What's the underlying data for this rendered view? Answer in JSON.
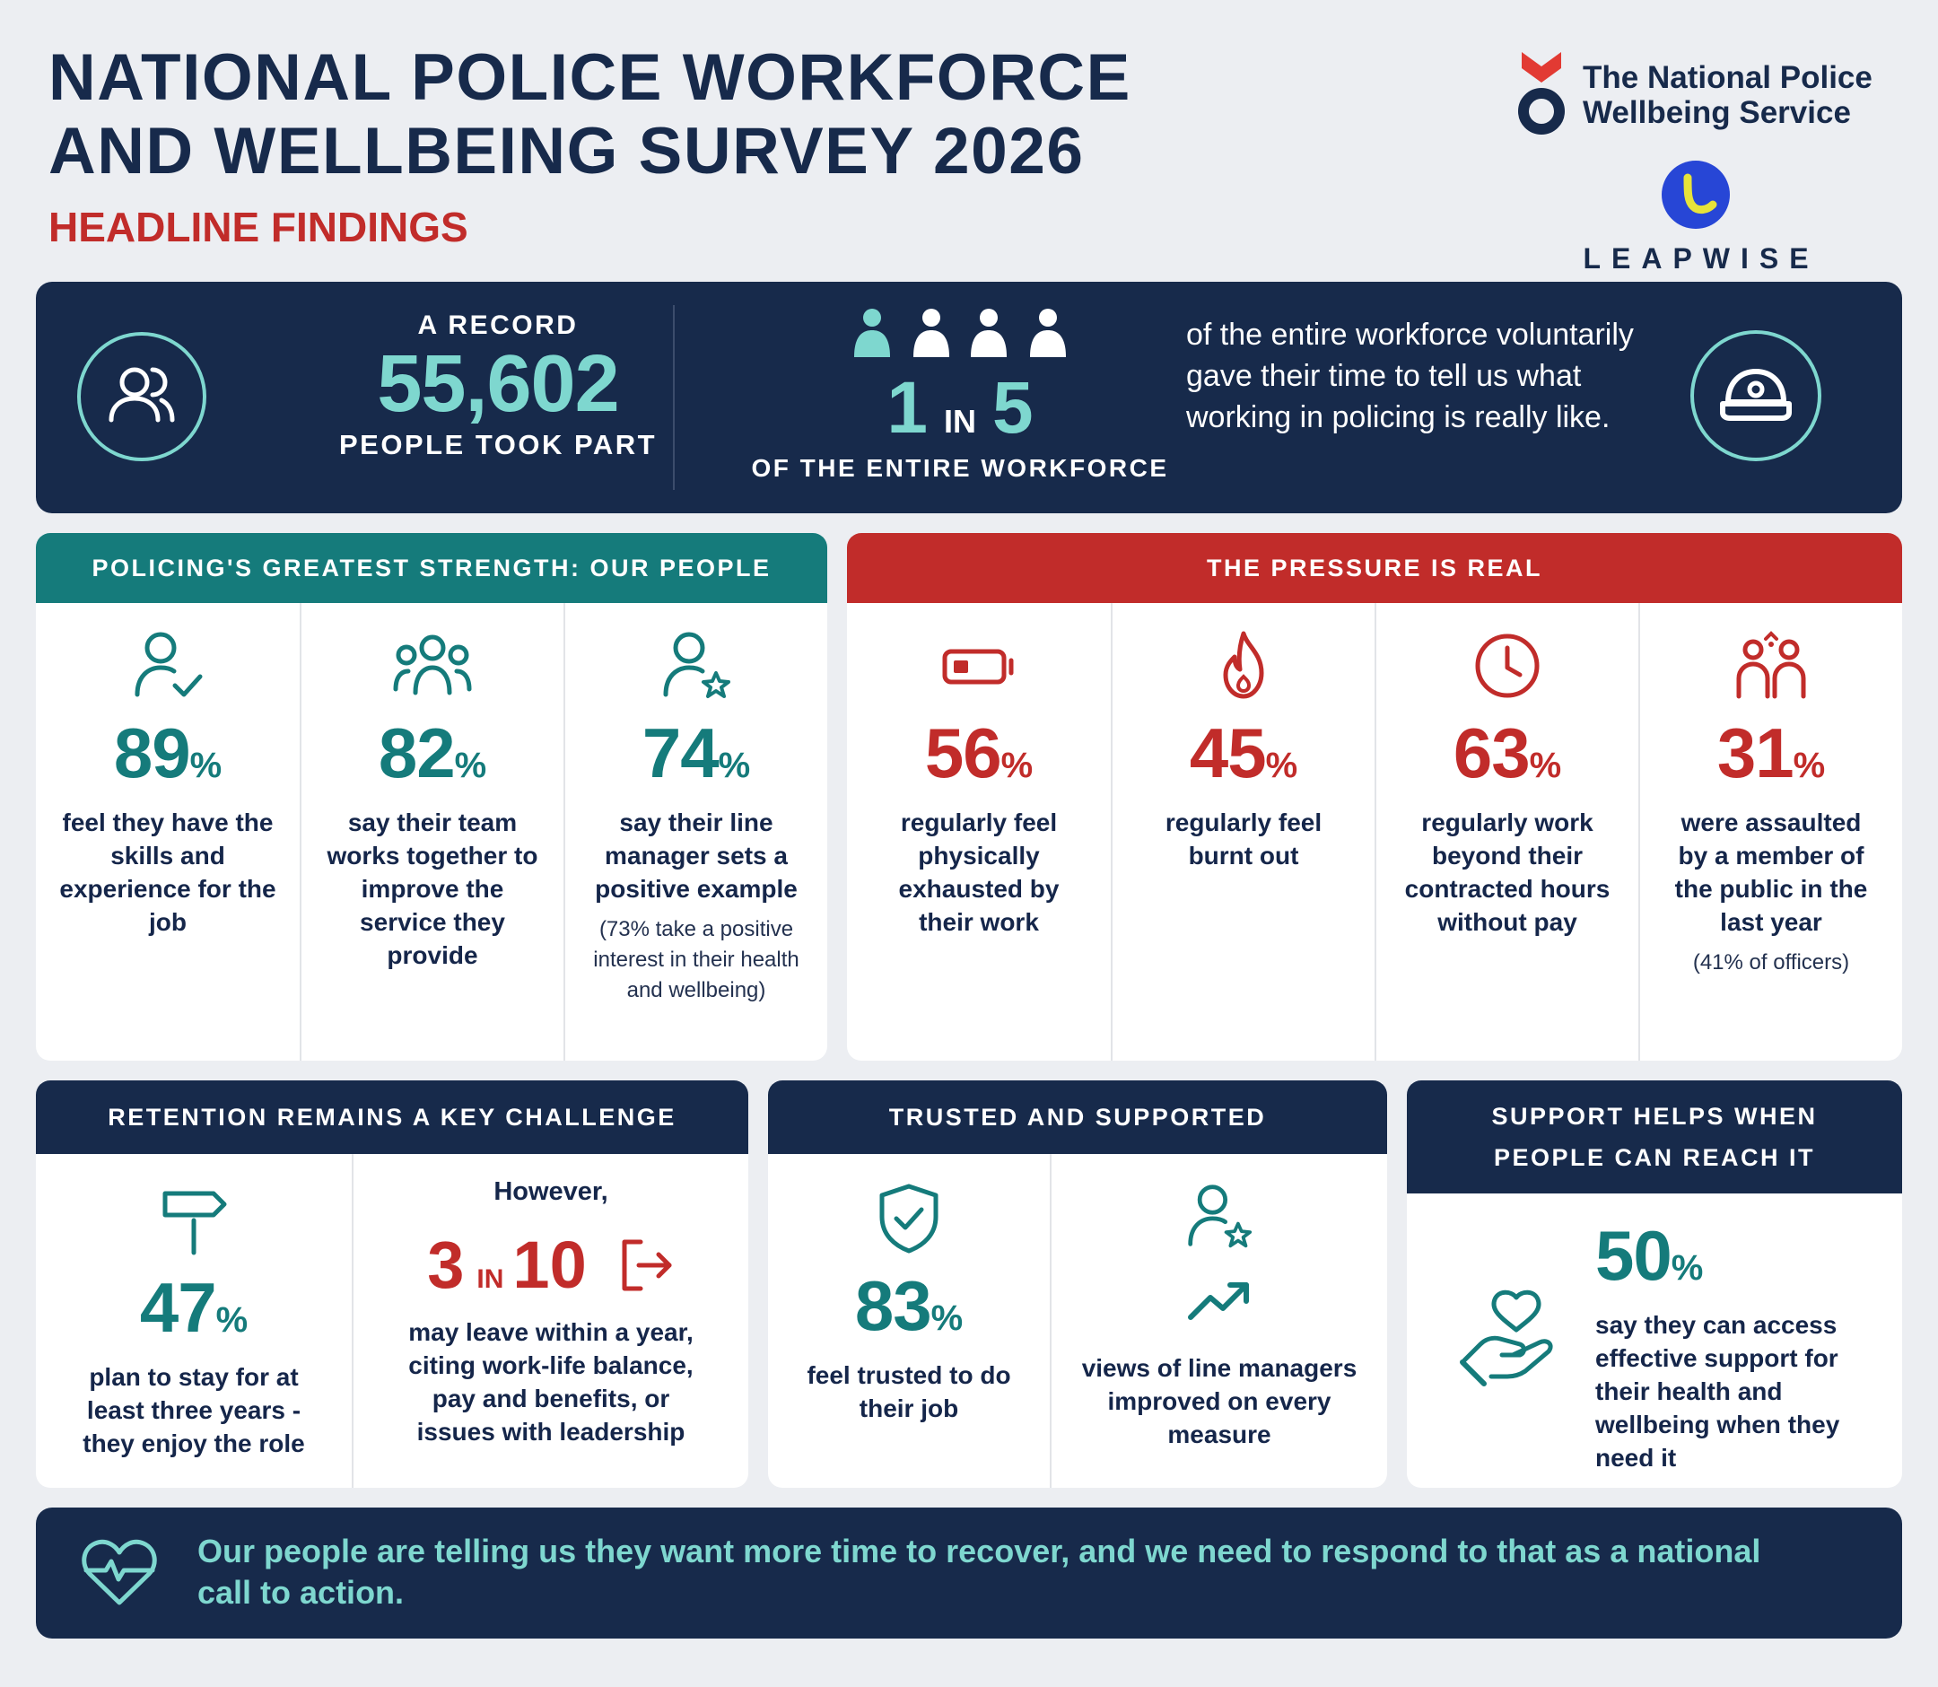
{
  "header": {
    "title_line1": "NATIONAL POLICE WORKFORCE",
    "title_line2": "AND WELLBEING SURVEY 2026",
    "subtitle": "HEADLINE FINDINGS",
    "logo1_line1": "The National Police",
    "logo1_line2": "Wellbeing Service",
    "logo2": "LEAPWISE"
  },
  "banner": {
    "record_label": "A RECORD",
    "record_number": "55,602",
    "record_caption": "PEOPLE TOOK PART",
    "ratio_num": "1",
    "ratio_in": "IN",
    "ratio_den": "5",
    "ratio_caption": "OF THE ENTIRE WORKFORCE",
    "text": "of the entire workforce voluntarily gave their time to tell us what working in policing is really like."
  },
  "strength": {
    "heading": "POLICING'S GREATEST STRENGTH: OUR PEOPLE",
    "items": [
      {
        "value": "89",
        "unit": "%",
        "text": "feel they have the skills and experience for the job",
        "icon": "person-check-icon"
      },
      {
        "value": "82",
        "unit": "%",
        "text": "say their team works together to improve the service they provide",
        "icon": "team-icon"
      },
      {
        "value": "74",
        "unit": "%",
        "text": "say their line manager sets a positive example",
        "note": "(73% take a positive interest in their health and wellbeing)",
        "icon": "person-star-icon"
      }
    ]
  },
  "pressure": {
    "heading": "THE PRESSURE IS REAL",
    "items": [
      {
        "value": "56",
        "unit": "%",
        "text": "regularly feel physically exhausted by their work",
        "icon": "battery-low-icon"
      },
      {
        "value": "45",
        "unit": "%",
        "text": "regularly feel burnt out",
        "icon": "flame-icon"
      },
      {
        "value": "63",
        "unit": "%",
        "text": "regularly work beyond their contracted hours without pay",
        "icon": "clock-icon"
      },
      {
        "value": "31",
        "unit": "%",
        "text": "were assaulted by a member of the public in the last year",
        "note": "(41% of officers)",
        "icon": "people-assault-icon"
      }
    ]
  },
  "retention": {
    "heading": "RETENTION REMAINS A KEY CHALLENGE",
    "stay_value": "47",
    "stay_unit": "%",
    "stay_text": "plan to stay for at least three years - they enjoy the role",
    "however": "However,",
    "leave_num": "3",
    "leave_in": "IN",
    "leave_den": "10",
    "leave_text": "may leave within a year, citing work-life balance, pay and benefits, or issues with leadership"
  },
  "trusted": {
    "heading": "TRUSTED AND SUPPORTED",
    "trust_value": "83",
    "trust_unit": "%",
    "trust_text": "feel trusted to do their job",
    "managers_text": "views of line managers improved on every measure"
  },
  "support": {
    "heading": "SUPPORT HELPS WHEN PEOPLE CAN REACH IT",
    "value": "50",
    "unit": "%",
    "text": "say they can access effective support for their health and wellbeing when they need it"
  },
  "footer": {
    "text": "Our people are telling us they want more time to recover, and we need to respond to that as a national call to action."
  },
  "colors": {
    "navy": "#172a4b",
    "teal": "#157b7b",
    "teal_light": "#7ed7cf",
    "red": "#c12c2a",
    "background": "#eceef2"
  }
}
